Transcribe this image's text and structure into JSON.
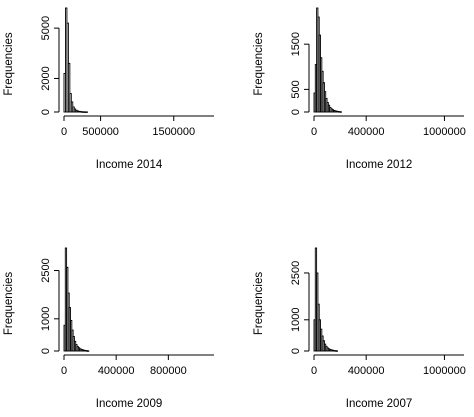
{
  "chart_data": [
    {
      "type": "bar",
      "xlabel": "Income 2014",
      "ylabel": "Frequencies",
      "xlim": [
        0,
        2050000
      ],
      "ylim": [
        0,
        6200
      ],
      "xticks": [
        0,
        500000,
        1500000
      ],
      "xtick_labels": [
        "0",
        "500000",
        "1500000"
      ],
      "yticks": [
        0,
        2000,
        5000
      ],
      "ytick_labels": [
        "0",
        "2000",
        "5000"
      ],
      "bin_width": 20000,
      "values": [
        2300,
        6200,
        5300,
        2900,
        1100,
        600,
        300,
        180,
        100,
        60,
        40,
        25,
        15,
        10,
        8,
        6
      ]
    },
    {
      "type": "bar",
      "xlabel": "Income 2012",
      "ylabel": "Frequencies",
      "xlim": [
        0,
        1150000
      ],
      "ylim": [
        0,
        2300
      ],
      "xticks": [
        0,
        400000,
        1000000
      ],
      "xtick_labels": [
        "0",
        "400000",
        "1000000"
      ],
      "yticks": [
        0,
        500,
        1500
      ],
      "ytick_labels": [
        "0",
        "500",
        "1500"
      ],
      "bin_width": 10000,
      "values": [
        420,
        1050,
        2300,
        2100,
        1700,
        1200,
        900,
        650,
        450,
        300,
        210,
        150,
        100,
        70,
        50,
        35,
        25,
        18,
        12,
        8,
        5
      ]
    },
    {
      "type": "bar",
      "xlabel": "Income 2009",
      "ylabel": "Frequencies",
      "xlim": [
        0,
        1150000
      ],
      "ylim": [
        0,
        3200
      ],
      "xticks": [
        0,
        400000,
        800000
      ],
      "xtick_labels": [
        "0",
        "400000",
        "800000"
      ],
      "yticks": [
        0,
        1000,
        2500
      ],
      "ytick_labels": [
        "0",
        "1000",
        "2500"
      ],
      "bin_width": 10000,
      "values": [
        800,
        3200,
        2600,
        1800,
        1350,
        950,
        650,
        450,
        300,
        200,
        140,
        100,
        70,
        50,
        35,
        25,
        15,
        10,
        6
      ]
    },
    {
      "type": "bar",
      "xlabel": "Income 2007",
      "ylabel": "Frequencies",
      "xlim": [
        0,
        1150000
      ],
      "ylim": [
        0,
        3300
      ],
      "xticks": [
        0,
        400000,
        1000000
      ],
      "xtick_labels": [
        "0",
        "400000",
        "1000000"
      ],
      "yticks": [
        0,
        1000,
        2500
      ],
      "ytick_labels": [
        "0",
        "1000",
        "2500"
      ],
      "bin_width": 10000,
      "values": [
        1000,
        3300,
        2500,
        1500,
        1000,
        700,
        480,
        330,
        220,
        150,
        100,
        70,
        50,
        35,
        25,
        15,
        10,
        6
      ]
    }
  ]
}
